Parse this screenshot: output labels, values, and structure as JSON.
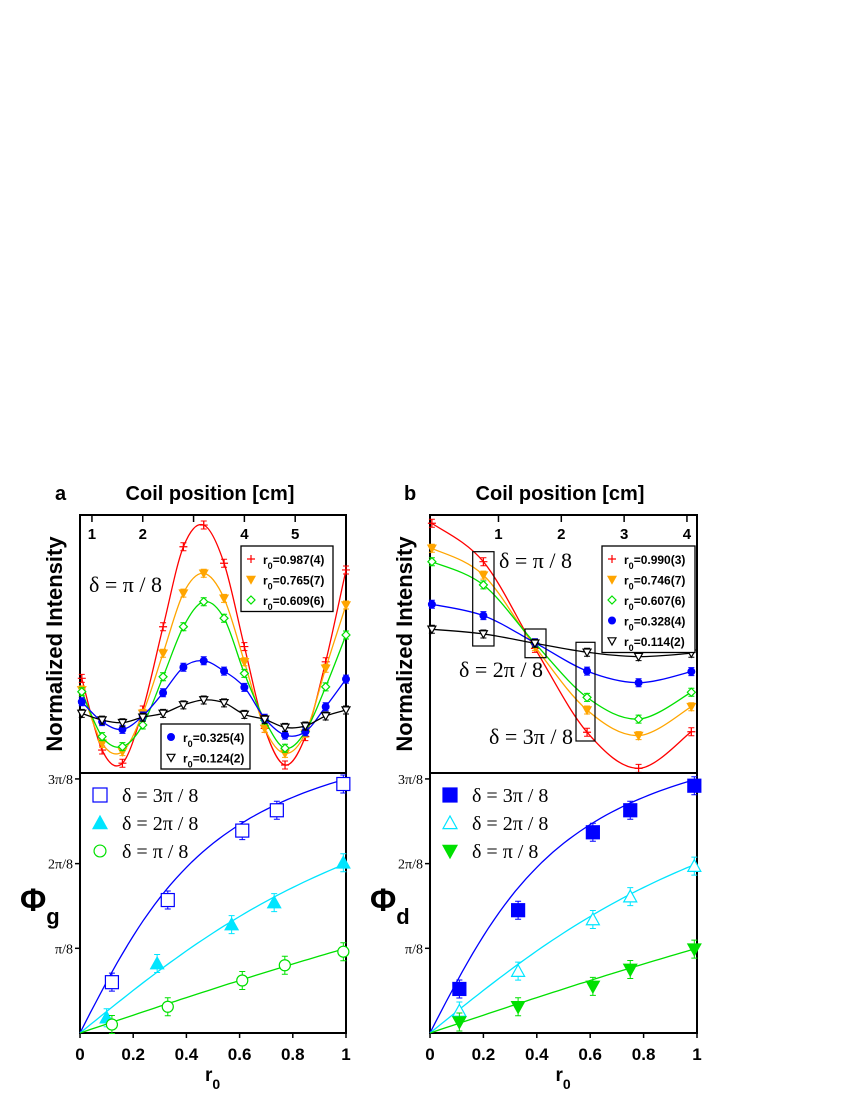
{
  "panels": [
    {
      "letter": "a",
      "top_title": "Coil position [cm]"
    },
    {
      "letter": "b",
      "top_title": "Coil position [cm]"
    }
  ],
  "chart_data": [
    {
      "panel": "a",
      "type": "line",
      "xlabel": "Coil position [cm]",
      "ylabel": "Normalized Intensity",
      "xlim": [
        0.765,
        6.0
      ],
      "ylim": [
        0,
        1
      ],
      "xticks": [
        1,
        2,
        3,
        4,
        5
      ],
      "xtick_labels": [
        "1",
        "2",
        "",
        "4",
        "5"
      ],
      "annotations": [
        "δ = π / 8"
      ],
      "x": [
        0.8,
        1.2,
        1.6,
        2.0,
        2.4,
        2.8,
        3.2,
        3.6,
        4.0,
        4.4,
        4.8,
        5.2,
        5.6,
        6.0
      ],
      "series": [
        {
          "name": "r0=0.987(4)",
          "color": "#ff0000",
          "marker": "plus",
          "legend": 0,
          "values": [
            0.367,
            0.089,
            0.038,
            0.244,
            0.567,
            0.877,
            0.961,
            0.813,
            0.49,
            0.173,
            0.031,
            0.141,
            0.431,
            0.787
          ]
        },
        {
          "name": "r0=0.765(7)",
          "color": "#ffa500",
          "marker": "tri-down-filled",
          "legend": 0,
          "values": [
            0.322,
            0.115,
            0.083,
            0.231,
            0.464,
            0.697,
            0.774,
            0.677,
            0.431,
            0.173,
            0.076,
            0.154,
            0.406,
            0.651
          ]
        },
        {
          "name": "r0=0.609(6)",
          "color": "#00e000",
          "marker": "diamond-open",
          "legend": 0,
          "values": [
            0.315,
            0.141,
            0.102,
            0.186,
            0.373,
            0.567,
            0.664,
            0.6,
            0.386,
            0.205,
            0.096,
            0.16,
            0.334,
            0.535
          ]
        },
        {
          "name": "r0=0.325(4)",
          "color": "#0000ff",
          "marker": "circle-filled",
          "legend": 1,
          "values": [
            0.276,
            0.199,
            0.169,
            0.221,
            0.311,
            0.41,
            0.435,
            0.395,
            0.332,
            0.212,
            0.147,
            0.16,
            0.257,
            0.364
          ]
        },
        {
          "name": "r0=0.124(2)",
          "color": "#000000",
          "marker": "tri-down-open",
          "legend": 1,
          "values": [
            0.231,
            0.205,
            0.195,
            0.216,
            0.231,
            0.264,
            0.283,
            0.272,
            0.227,
            0.208,
            0.177,
            0.182,
            0.221,
            0.244
          ]
        }
      ]
    },
    {
      "panel": "b",
      "type": "line",
      "xlabel": "Coil position [cm]",
      "ylabel": "Normalized Intensity",
      "xlim": [
        -0.09,
        4.16
      ],
      "ylim": [
        0,
        1
      ],
      "xticks": [
        1,
        2,
        3,
        4
      ],
      "xtick_labels": [
        "1",
        "2",
        "3",
        "4"
      ],
      "annotations": [
        "δ = π / 8",
        "δ = 2π / 8",
        "δ = 3π / 8"
      ],
      "x": [
        -0.06,
        0.76,
        1.58,
        2.41,
        3.23,
        4.07
      ],
      "series": [
        {
          "name": "r0=0.990(3)",
          "color": "#ff0000",
          "marker": "plus",
          "legend": 0,
          "values": [
            0.968,
            0.819,
            0.483,
            0.158,
            0.018,
            0.16
          ]
        },
        {
          "name": "r0=0.746(7)",
          "color": "#ffa500",
          "marker": "tri-down-filled",
          "legend": 0,
          "values": [
            0.871,
            0.767,
            0.49,
            0.244,
            0.145,
            0.257
          ]
        },
        {
          "name": "r0=0.607(6)",
          "color": "#00e000",
          "marker": "diamond-open",
          "legend": 0,
          "values": [
            0.819,
            0.729,
            0.503,
            0.293,
            0.209,
            0.313
          ]
        },
        {
          "name": "r0=0.328(4)",
          "color": "#0000ff",
          "marker": "circle-filled",
          "legend": 0,
          "values": [
            0.654,
            0.61,
            0.505,
            0.395,
            0.35,
            0.393
          ]
        },
        {
          "name": "r0=0.114(2)",
          "color": "#000000",
          "marker": "tri-down-open",
          "legend": 0,
          "values": [
            0.557,
            0.539,
            0.503,
            0.468,
            0.451,
            0.464
          ]
        }
      ]
    },
    {
      "panel": "a",
      "type": "scatter",
      "xlabel": "r0",
      "ylabel": "Φg",
      "xlim": [
        0,
        1
      ],
      "ylim": [
        0,
        3.07
      ],
      "y_unit": "π/8",
      "xticks": [
        0,
        0.2,
        0.4,
        0.6,
        0.8,
        1
      ],
      "xtick_labels": [
        "0",
        "0.2",
        "0.4",
        "0.6",
        "0.8",
        "1"
      ],
      "yticks": [
        1,
        2,
        3
      ],
      "ytick_labels": [
        "π/8",
        "2π/8",
        "3π/8"
      ],
      "series": [
        {
          "name": "δ = 3π / 8",
          "delta": 3,
          "color": "#0000ff",
          "marker": "square-open",
          "x": [
            0.12,
            0.33,
            0.61,
            0.74,
            0.99
          ],
          "values": [
            0.6,
            1.57,
            2.39,
            2.63,
            2.94
          ]
        },
        {
          "name": "δ = 2π / 8",
          "delta": 2,
          "color": "#00e5ff",
          "marker": "tri-up-filled",
          "x": [
            0.1,
            0.29,
            0.57,
            0.73,
            0.99
          ],
          "values": [
            0.18,
            0.82,
            1.28,
            1.54,
            2.01
          ]
        },
        {
          "name": "δ = π / 8",
          "delta": 1,
          "color": "#00e000",
          "marker": "circle-open",
          "x": [
            0.12,
            0.33,
            0.61,
            0.77,
            0.99
          ],
          "values": [
            0.1,
            0.31,
            0.62,
            0.8,
            0.96
          ]
        }
      ]
    },
    {
      "panel": "b",
      "type": "scatter",
      "xlabel": "r0",
      "ylabel": "Φd",
      "xlim": [
        0,
        1
      ],
      "ylim": [
        0,
        3.07
      ],
      "y_unit": "π/8",
      "xticks": [
        0,
        0.2,
        0.4,
        0.6,
        0.8,
        1
      ],
      "xtick_labels": [
        "0",
        "0.2",
        "0.4",
        "0.6",
        "0.8",
        "1"
      ],
      "yticks": [
        1,
        2,
        3
      ],
      "ytick_labels": [
        "π/8",
        "2π/8",
        "3π/8"
      ],
      "series": [
        {
          "name": "δ = 3π / 8",
          "delta": 3,
          "color": "#0000ff",
          "marker": "square-filled",
          "x": [
            0.11,
            0.33,
            0.61,
            0.75,
            0.99
          ],
          "values": [
            0.52,
            1.45,
            2.37,
            2.63,
            2.92
          ]
        },
        {
          "name": "δ = 2π / 8",
          "delta": 2,
          "color": "#00e5ff",
          "marker": "tri-up-open",
          "x": [
            0.11,
            0.33,
            0.61,
            0.75,
            0.99
          ],
          "values": [
            0.26,
            0.73,
            1.34,
            1.61,
            1.97
          ]
        },
        {
          "name": "δ = π / 8",
          "delta": 1,
          "color": "#00e000",
          "marker": "tri-down-filled",
          "x": [
            0.11,
            0.33,
            0.61,
            0.75,
            0.99
          ],
          "values": [
            0.13,
            0.31,
            0.55,
            0.75,
            0.99
          ]
        }
      ]
    }
  ]
}
